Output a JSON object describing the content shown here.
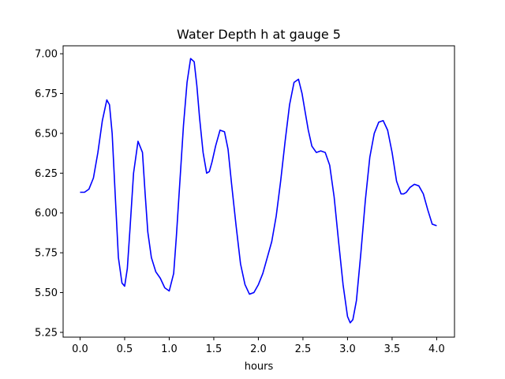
{
  "chart_data": {
    "type": "line",
    "title": "Water Depth h at gauge 5",
    "xlabel": "hours",
    "ylabel": "",
    "xlim": [
      -0.19,
      4.2
    ],
    "ylim": [
      5.22,
      7.05
    ],
    "xticks": [
      0.0,
      0.5,
      1.0,
      1.5,
      2.0,
      2.5,
      3.0,
      3.5,
      4.0
    ],
    "xtick_labels": [
      "0.0",
      "0.5",
      "1.0",
      "1.5",
      "2.0",
      "2.5",
      "3.0",
      "3.5",
      "4.0"
    ],
    "yticks": [
      5.25,
      5.5,
      5.75,
      6.0,
      6.25,
      6.5,
      6.75,
      7.0
    ],
    "ytick_labels": [
      "5.25",
      "5.50",
      "5.75",
      "6.00",
      "6.25",
      "6.50",
      "6.75",
      "7.00"
    ],
    "grid": false,
    "color": "#0000ff",
    "series": [
      {
        "x": [
          0.0,
          0.05,
          0.1,
          0.15,
          0.2,
          0.25,
          0.3,
          0.33,
          0.36,
          0.4,
          0.43,
          0.47,
          0.5,
          0.53,
          0.56,
          0.6,
          0.65,
          0.7,
          0.73,
          0.76,
          0.8,
          0.85,
          0.9,
          0.95,
          1.0,
          1.05,
          1.08,
          1.12,
          1.16,
          1.2,
          1.24,
          1.28,
          1.31,
          1.34,
          1.38,
          1.42,
          1.45,
          1.48,
          1.52,
          1.57,
          1.62,
          1.66,
          1.7,
          1.75,
          1.8,
          1.85,
          1.9,
          1.95,
          2.0,
          2.05,
          2.1,
          2.15,
          2.2,
          2.25,
          2.3,
          2.35,
          2.4,
          2.45,
          2.49,
          2.52,
          2.56,
          2.6,
          2.65,
          2.7,
          2.75,
          2.8,
          2.85,
          2.9,
          2.95,
          3.0,
          3.03,
          3.06,
          3.1,
          3.15,
          3.2,
          3.25,
          3.3,
          3.35,
          3.4,
          3.45,
          3.5,
          3.55,
          3.6,
          3.63,
          3.66,
          3.7,
          3.75,
          3.8,
          3.85,
          3.9,
          3.95,
          4.0
        ],
        "y": [
          6.13,
          6.13,
          6.15,
          6.22,
          6.38,
          6.58,
          6.71,
          6.68,
          6.5,
          6.05,
          5.72,
          5.56,
          5.54,
          5.65,
          5.9,
          6.25,
          6.45,
          6.38,
          6.12,
          5.88,
          5.72,
          5.63,
          5.59,
          5.53,
          5.51,
          5.62,
          5.85,
          6.2,
          6.55,
          6.82,
          6.97,
          6.95,
          6.8,
          6.6,
          6.38,
          6.25,
          6.26,
          6.32,
          6.42,
          6.52,
          6.51,
          6.4,
          6.18,
          5.92,
          5.68,
          5.55,
          5.49,
          5.5,
          5.55,
          5.62,
          5.72,
          5.82,
          5.98,
          6.2,
          6.45,
          6.68,
          6.82,
          6.84,
          6.75,
          6.65,
          6.52,
          6.42,
          6.38,
          6.39,
          6.38,
          6.3,
          6.1,
          5.82,
          5.55,
          5.35,
          5.31,
          5.33,
          5.45,
          5.75,
          6.08,
          6.35,
          6.5,
          6.57,
          6.58,
          6.52,
          6.38,
          6.2,
          6.12,
          6.12,
          6.13,
          6.16,
          6.18,
          6.17,
          6.12,
          6.02,
          5.93,
          5.92
        ]
      }
    ]
  }
}
